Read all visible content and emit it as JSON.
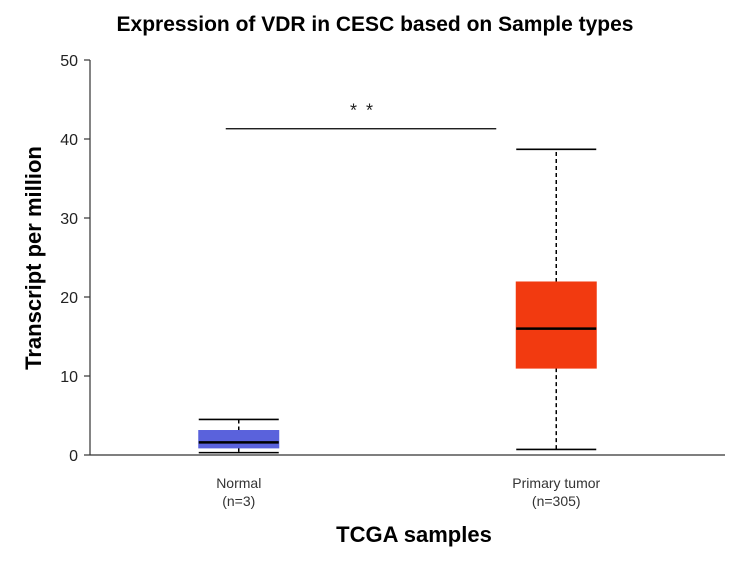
{
  "chart_data": {
    "type": "boxplot",
    "title": "Expression of VDR in CESC based on Sample types",
    "xlabel": "TCGA samples",
    "ylabel": "Transcript per million",
    "ylim": [
      0,
      50
    ],
    "yticks": [
      "0",
      "10",
      "20",
      "30",
      "40",
      "50"
    ],
    "grid": false,
    "series": [
      {
        "name": "Normal",
        "label_line1": "Normal",
        "label_line2": "(n=3)",
        "color": "#5a62dc",
        "whisker_low": 0.3,
        "q1": 0.9,
        "median": 1.6,
        "q3": 3.1,
        "whisker_high": 4.5
      },
      {
        "name": "Primary tumor",
        "label_line1": "Primary tumor",
        "label_line2": "(n=305)",
        "color": "#f23a10",
        "whisker_low": 0.7,
        "q1": 11.0,
        "median": 16.0,
        "q3": 21.9,
        "whisker_high": 38.7
      }
    ],
    "significance": {
      "label": "* *",
      "y": 41.3
    }
  }
}
